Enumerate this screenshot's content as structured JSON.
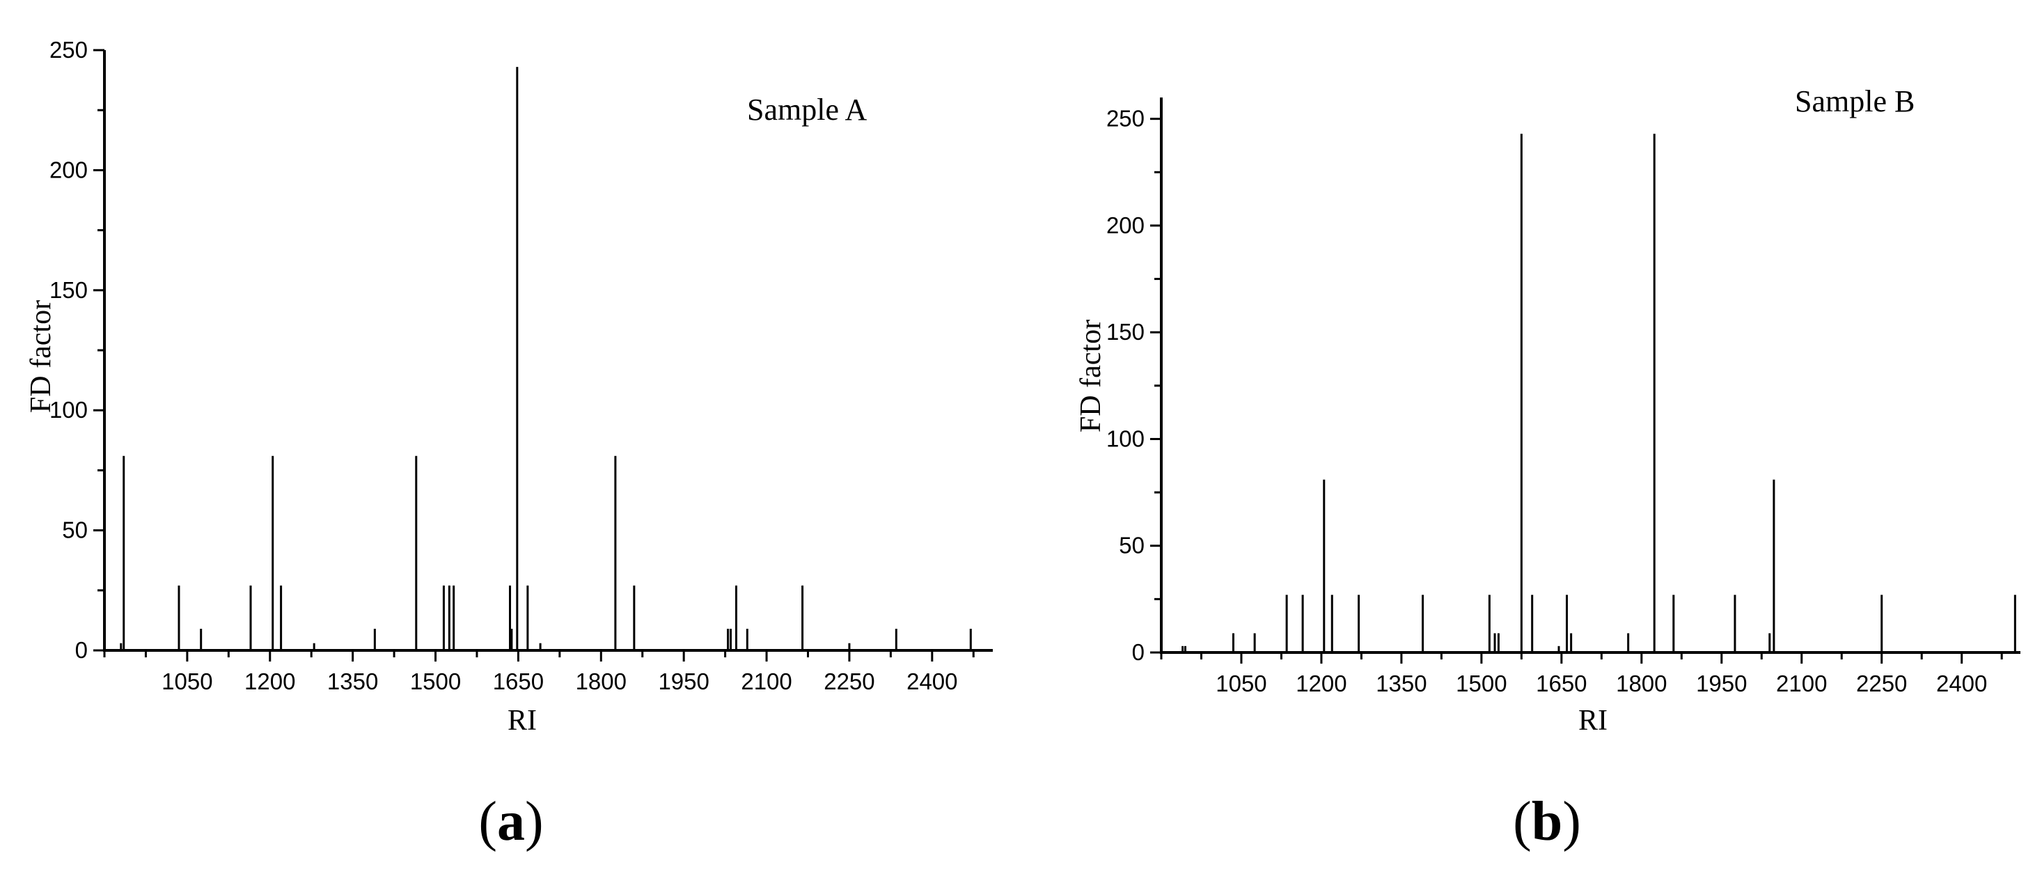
{
  "chart_data": [
    {
      "type": "bar",
      "panel_label": "a",
      "annotation": "Sample A",
      "xlabel": "RI",
      "ylabel": "FD factor",
      "xlim": [
        900,
        2510
      ],
      "ylim": [
        0,
        250
      ],
      "xticks": [
        1050,
        1200,
        1350,
        1500,
        1650,
        1800,
        1950,
        2100,
        2250,
        2400
      ],
      "yticks": [
        0,
        50,
        100,
        150,
        200,
        250
      ],
      "grid": false,
      "points": [
        {
          "x": 930,
          "y": 3
        },
        {
          "x": 935,
          "y": 81
        },
        {
          "x": 1035,
          "y": 27
        },
        {
          "x": 1075,
          "y": 9
        },
        {
          "x": 1165,
          "y": 27
        },
        {
          "x": 1205,
          "y": 81
        },
        {
          "x": 1220,
          "y": 27
        },
        {
          "x": 1280,
          "y": 3
        },
        {
          "x": 1390,
          "y": 9
        },
        {
          "x": 1465,
          "y": 81
        },
        {
          "x": 1515,
          "y": 27
        },
        {
          "x": 1525,
          "y": 27
        },
        {
          "x": 1533,
          "y": 27
        },
        {
          "x": 1635,
          "y": 27
        },
        {
          "x": 1638,
          "y": 9
        },
        {
          "x": 1648,
          "y": 243
        },
        {
          "x": 1667,
          "y": 27
        },
        {
          "x": 1690,
          "y": 3
        },
        {
          "x": 1826,
          "y": 81
        },
        {
          "x": 1860,
          "y": 27
        },
        {
          "x": 2030,
          "y": 9
        },
        {
          "x": 2035,
          "y": 9
        },
        {
          "x": 2045,
          "y": 27
        },
        {
          "x": 2065,
          "y": 9
        },
        {
          "x": 2165,
          "y": 27
        },
        {
          "x": 2250,
          "y": 3
        },
        {
          "x": 2335,
          "y": 9
        },
        {
          "x": 2470,
          "y": 9
        }
      ]
    },
    {
      "type": "bar",
      "panel_label": "b",
      "annotation": "Sample B",
      "xlabel": "RI",
      "ylabel": "FD factor",
      "xlim": [
        900,
        2510
      ],
      "ylim": [
        0,
        260
      ],
      "xticks": [
        1050,
        1200,
        1350,
        1500,
        1650,
        1800,
        1950,
        2100,
        2250,
        2400
      ],
      "yticks": [
        0,
        50,
        100,
        150,
        200,
        250
      ],
      "grid": false,
      "points": [
        {
          "x": 940,
          "y": 3
        },
        {
          "x": 945,
          "y": 3
        },
        {
          "x": 1035,
          "y": 9
        },
        {
          "x": 1075,
          "y": 9
        },
        {
          "x": 1135,
          "y": 27
        },
        {
          "x": 1165,
          "y": 27
        },
        {
          "x": 1205,
          "y": 81
        },
        {
          "x": 1220,
          "y": 27
        },
        {
          "x": 1270,
          "y": 27
        },
        {
          "x": 1390,
          "y": 27
        },
        {
          "x": 1515,
          "y": 27
        },
        {
          "x": 1525,
          "y": 9
        },
        {
          "x": 1532,
          "y": 9
        },
        {
          "x": 1575,
          "y": 243
        },
        {
          "x": 1595,
          "y": 27
        },
        {
          "x": 1645,
          "y": 3
        },
        {
          "x": 1660,
          "y": 27
        },
        {
          "x": 1668,
          "y": 9
        },
        {
          "x": 1775,
          "y": 9
        },
        {
          "x": 1824,
          "y": 243
        },
        {
          "x": 1860,
          "y": 27
        },
        {
          "x": 1975,
          "y": 27
        },
        {
          "x": 2040,
          "y": 9
        },
        {
          "x": 2048,
          "y": 81
        },
        {
          "x": 2250,
          "y": 27
        },
        {
          "x": 2500,
          "y": 27
        }
      ]
    }
  ]
}
